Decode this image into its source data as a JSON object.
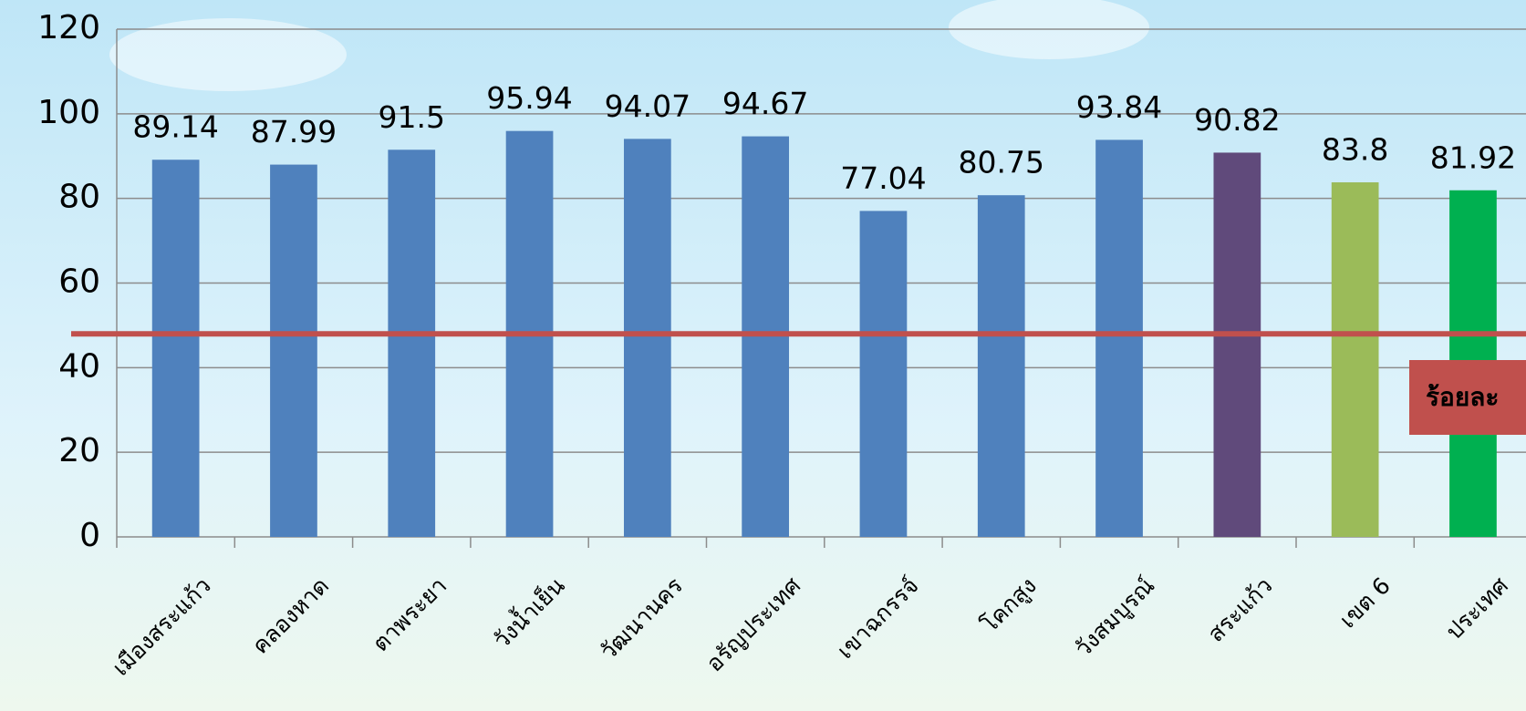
{
  "chart_data": {
    "type": "bar",
    "categories": [
      "เมืองสระแก้ว",
      "คลองหาด",
      "ตาพระยา",
      "วังน้ำเย็น",
      "วัฒนานคร",
      "อรัญประเทศ",
      "เขาฉกรรจ์",
      "โคกสูง",
      "วังสมบูรณ์",
      "สระแก้ว",
      "เขต 6",
      "ประเทศ"
    ],
    "values": [
      89.14,
      87.99,
      91.5,
      95.94,
      94.07,
      94.67,
      77.04,
      80.75,
      93.84,
      90.82,
      83.8,
      81.92
    ],
    "colors": [
      "#4f81bd",
      "#4f81bd",
      "#4f81bd",
      "#4f81bd",
      "#4f81bd",
      "#4f81bd",
      "#4f81bd",
      "#4f81bd",
      "#4f81bd",
      "#604a7b",
      "#9bbb59",
      "#00b050"
    ],
    "ylim": [
      0,
      120
    ],
    "yticks": [
      0,
      20,
      40,
      60,
      80,
      100,
      120
    ],
    "grid": true,
    "reference_line": {
      "value": 48,
      "color": "#c0504d",
      "label": "ร้อยละ"
    }
  }
}
